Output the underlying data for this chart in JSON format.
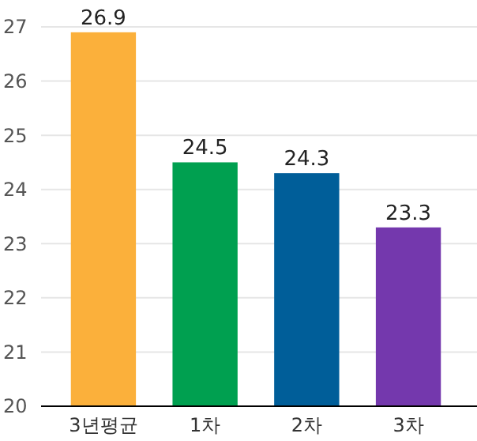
{
  "chart_data": {
    "type": "bar",
    "categories": [
      "3년평균",
      "1차",
      "2차",
      "3차"
    ],
    "values": [
      26.9,
      24.5,
      24.3,
      23.3
    ],
    "colors": [
      "#fbb03b",
      "#00a050",
      "#005e99",
      "#7438ad"
    ],
    "ylim": [
      20,
      27
    ],
    "yticks": [
      20,
      21,
      22,
      23,
      24,
      25,
      26,
      27
    ],
    "grid": "y",
    "data_labels": true
  }
}
